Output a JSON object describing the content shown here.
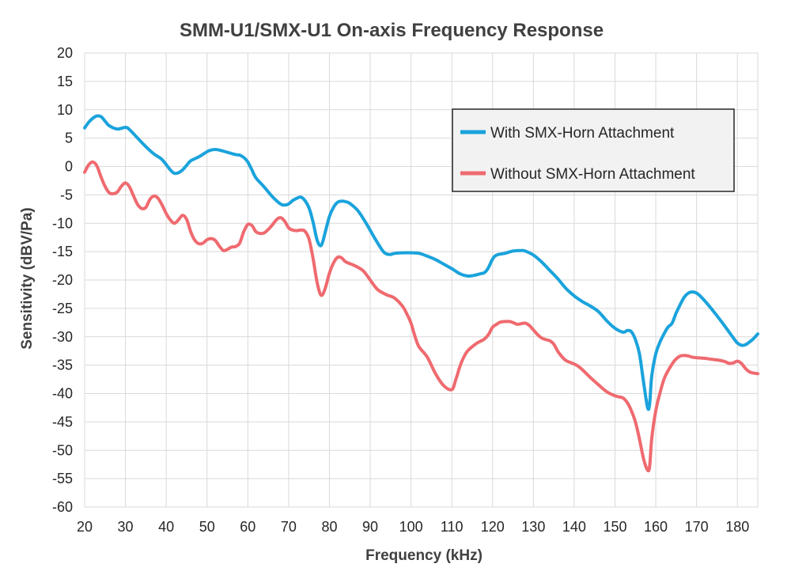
{
  "chart_data": {
    "type": "line",
    "title": "SMM-U1/SMX-U1  On-axis Frequency Response",
    "xlabel": "Frequency (kHz)",
    "ylabel": "Sensitivity (dBV/Pa)",
    "xlim": [
      20,
      185
    ],
    "ylim": [
      -60,
      20
    ],
    "xticks": [
      20,
      30,
      40,
      50,
      60,
      70,
      80,
      90,
      100,
      110,
      120,
      130,
      140,
      150,
      160,
      170,
      180
    ],
    "yticks": [
      20,
      15,
      10,
      5,
      0,
      -5,
      -10,
      -15,
      -20,
      -25,
      -30,
      -35,
      -40,
      -45,
      -50,
      -55,
      -60
    ],
    "grid": true,
    "legend_position": "top-right",
    "series": [
      {
        "name": "With SMX-Horn Attachment",
        "color": "#1aa3dc",
        "points": [
          [
            20,
            6.8
          ],
          [
            21,
            7.8
          ],
          [
            22,
            8.5
          ],
          [
            23,
            8.9
          ],
          [
            24,
            8.8
          ],
          [
            25,
            8
          ],
          [
            26,
            7.2
          ],
          [
            28,
            6.6
          ],
          [
            30,
            6.9
          ],
          [
            31,
            6.5
          ],
          [
            33,
            5
          ],
          [
            35,
            3.5
          ],
          [
            37,
            2.2
          ],
          [
            39,
            1.2
          ],
          [
            41,
            -0.6
          ],
          [
            42,
            -1.2
          ],
          [
            43,
            -1.1
          ],
          [
            44,
            -0.6
          ],
          [
            45,
            0.2
          ],
          [
            46,
            1
          ],
          [
            48,
            1.7
          ],
          [
            50,
            2.6
          ],
          [
            51,
            2.9
          ],
          [
            52,
            3
          ],
          [
            53,
            2.9
          ],
          [
            55,
            2.5
          ],
          [
            57,
            2.1
          ],
          [
            58,
            2
          ],
          [
            59,
            1.6
          ],
          [
            60,
            0.8
          ],
          [
            61,
            -0.6
          ],
          [
            62,
            -2
          ],
          [
            64,
            -3.6
          ],
          [
            66,
            -5.3
          ],
          [
            68,
            -6.6
          ],
          [
            69,
            -6.8
          ],
          [
            70,
            -6.6
          ],
          [
            71,
            -6
          ],
          [
            72,
            -5.6
          ],
          [
            73,
            -5.4
          ],
          [
            74,
            -6
          ],
          [
            75,
            -7.3
          ],
          [
            76,
            -9.8
          ],
          [
            77,
            -13
          ],
          [
            78,
            -13.9
          ],
          [
            79,
            -11.5
          ],
          [
            80,
            -8.8
          ],
          [
            81,
            -7.2
          ],
          [
            82,
            -6.3
          ],
          [
            83,
            -6.1
          ],
          [
            84,
            -6.2
          ],
          [
            85,
            -6.5
          ],
          [
            87,
            -7.8
          ],
          [
            89,
            -10
          ],
          [
            91,
            -12.5
          ],
          [
            93,
            -14.8
          ],
          [
            94,
            -15.4
          ],
          [
            95,
            -15.5
          ],
          [
            96,
            -15.3
          ],
          [
            98,
            -15.2
          ],
          [
            100,
            -15.2
          ],
          [
            102,
            -15.3
          ],
          [
            104,
            -15.8
          ],
          [
            106,
            -16.4
          ],
          [
            108,
            -17.2
          ],
          [
            110,
            -18
          ],
          [
            112,
            -18.9
          ],
          [
            114,
            -19.3
          ],
          [
            116,
            -19.1
          ],
          [
            117,
            -18.9
          ],
          [
            118,
            -18.7
          ],
          [
            119,
            -17.8
          ],
          [
            120,
            -16.3
          ],
          [
            121,
            -15.6
          ],
          [
            123,
            -15.3
          ],
          [
            125,
            -14.9
          ],
          [
            127,
            -14.8
          ],
          [
            128,
            -14.9
          ],
          [
            130,
            -15.6
          ],
          [
            132,
            -16.8
          ],
          [
            134,
            -18.3
          ],
          [
            136,
            -19.8
          ],
          [
            138,
            -21.5
          ],
          [
            140,
            -22.8
          ],
          [
            142,
            -23.8
          ],
          [
            144,
            -24.6
          ],
          [
            146,
            -25.6
          ],
          [
            148,
            -27.2
          ],
          [
            150,
            -28.5
          ],
          [
            152,
            -29.2
          ],
          [
            153,
            -28.9
          ],
          [
            154,
            -29.1
          ],
          [
            155,
            -30.5
          ],
          [
            156,
            -33
          ],
          [
            157,
            -38
          ],
          [
            158,
            -42.5
          ],
          [
            158.5,
            -41.8
          ],
          [
            159,
            -37
          ],
          [
            160,
            -33
          ],
          [
            161,
            -31
          ],
          [
            162,
            -29.5
          ],
          [
            163,
            -28.3
          ],
          [
            164,
            -27.6
          ],
          [
            165,
            -25.8
          ],
          [
            166,
            -24.3
          ],
          [
            167,
            -23
          ],
          [
            168,
            -22.3
          ],
          [
            169,
            -22.1
          ],
          [
            170,
            -22.3
          ],
          [
            171,
            -22.9
          ],
          [
            173,
            -24.5
          ],
          [
            175,
            -26.3
          ],
          [
            177,
            -28.2
          ],
          [
            179,
            -30.2
          ],
          [
            180,
            -31.1
          ],
          [
            181,
            -31.5
          ],
          [
            182,
            -31.4
          ],
          [
            183,
            -30.9
          ],
          [
            184,
            -30.3
          ],
          [
            185,
            -29.5
          ]
        ]
      },
      {
        "name": "Without SMX-Horn Attachment",
        "color": "#ef6a6f",
        "points": [
          [
            20,
            -1
          ],
          [
            21,
            0.3
          ],
          [
            22,
            0.8
          ],
          [
            23,
            0.1
          ],
          [
            24,
            -1.8
          ],
          [
            25,
            -3.5
          ],
          [
            26,
            -4.6
          ],
          [
            27,
            -4.8
          ],
          [
            28,
            -4.5
          ],
          [
            29,
            -3.5
          ],
          [
            30,
            -2.9
          ],
          [
            31,
            -3.6
          ],
          [
            32,
            -5.2
          ],
          [
            33,
            -6.7
          ],
          [
            34,
            -7.4
          ],
          [
            35,
            -7.2
          ],
          [
            36,
            -5.8
          ],
          [
            37,
            -5.2
          ],
          [
            38,
            -5.6
          ],
          [
            39,
            -6.8
          ],
          [
            40,
            -8.3
          ],
          [
            41,
            -9.4
          ],
          [
            42,
            -10
          ],
          [
            43,
            -9.4
          ],
          [
            44,
            -8.6
          ],
          [
            45,
            -9.3
          ],
          [
            46,
            -11.5
          ],
          [
            47,
            -13
          ],
          [
            48,
            -13.6
          ],
          [
            49,
            -13.5
          ],
          [
            50,
            -12.9
          ],
          [
            51,
            -12.7
          ],
          [
            52,
            -13
          ],
          [
            53,
            -14
          ],
          [
            54,
            -14.8
          ],
          [
            55,
            -14.6
          ],
          [
            56,
            -14.2
          ],
          [
            57,
            -14.1
          ],
          [
            58,
            -13.5
          ],
          [
            59,
            -11.5
          ],
          [
            60,
            -10.2
          ],
          [
            61,
            -10.4
          ],
          [
            62,
            -11.5
          ],
          [
            63,
            -11.8
          ],
          [
            64,
            -11.7
          ],
          [
            65,
            -11.1
          ],
          [
            66,
            -10.3
          ],
          [
            67,
            -9.4
          ],
          [
            68,
            -9
          ],
          [
            69,
            -9.6
          ],
          [
            70,
            -10.8
          ],
          [
            71,
            -11.2
          ],
          [
            72,
            -11.3
          ],
          [
            73,
            -11.2
          ],
          [
            74,
            -11.4
          ],
          [
            75,
            -12.8
          ],
          [
            76,
            -16.2
          ],
          [
            77,
            -20.5
          ],
          [
            78,
            -22.7
          ],
          [
            79,
            -21.4
          ],
          [
            80,
            -18.8
          ],
          [
            81,
            -17
          ],
          [
            82,
            -16
          ],
          [
            83,
            -16.1
          ],
          [
            84,
            -16.8
          ],
          [
            86,
            -17.4
          ],
          [
            88,
            -18.2
          ],
          [
            89,
            -19
          ],
          [
            90,
            -20
          ],
          [
            91,
            -21
          ],
          [
            92,
            -21.8
          ],
          [
            94,
            -22.6
          ],
          [
            96,
            -23.2
          ],
          [
            98,
            -24.7
          ],
          [
            99,
            -26
          ],
          [
            100,
            -27.6
          ],
          [
            101,
            -30
          ],
          [
            102,
            -31.8
          ],
          [
            104,
            -33.6
          ],
          [
            106,
            -36.5
          ],
          [
            108,
            -38.6
          ],
          [
            110,
            -39.3
          ],
          [
            111,
            -37.5
          ],
          [
            112,
            -35.2
          ],
          [
            113,
            -33.5
          ],
          [
            114,
            -32.4
          ],
          [
            116,
            -31.2
          ],
          [
            117,
            -30.8
          ],
          [
            118,
            -30.4
          ],
          [
            119,
            -29.6
          ],
          [
            120,
            -28.3
          ],
          [
            121,
            -27.8
          ],
          [
            122,
            -27.4
          ],
          [
            124,
            -27.3
          ],
          [
            125,
            -27.5
          ],
          [
            126,
            -27.8
          ],
          [
            127,
            -27.7
          ],
          [
            128,
            -27.6
          ],
          [
            129,
            -28
          ],
          [
            130,
            -28.8
          ],
          [
            131,
            -29.6
          ],
          [
            132,
            -30.2
          ],
          [
            133,
            -30.5
          ],
          [
            134,
            -30.7
          ],
          [
            135,
            -31.3
          ],
          [
            136,
            -32.6
          ],
          [
            137,
            -33.5
          ],
          [
            138,
            -34.2
          ],
          [
            140,
            -34.8
          ],
          [
            141,
            -35.2
          ],
          [
            142,
            -35.8
          ],
          [
            144,
            -37.2
          ],
          [
            146,
            -38.5
          ],
          [
            148,
            -39.7
          ],
          [
            150,
            -40.4
          ],
          [
            151,
            -40.6
          ],
          [
            152,
            -40.8
          ],
          [
            153,
            -41.6
          ],
          [
            154,
            -43
          ],
          [
            155,
            -45
          ],
          [
            156,
            -48
          ],
          [
            157,
            -51.5
          ],
          [
            158,
            -53.5
          ],
          [
            158.5,
            -52.8
          ],
          [
            159,
            -48
          ],
          [
            160,
            -43
          ],
          [
            161,
            -40
          ],
          [
            162,
            -37.5
          ],
          [
            163,
            -36
          ],
          [
            164,
            -34.8
          ],
          [
            165,
            -33.9
          ],
          [
            166,
            -33.4
          ],
          [
            167,
            -33.3
          ],
          [
            168,
            -33.4
          ],
          [
            169,
            -33.6
          ],
          [
            170,
            -33.7
          ],
          [
            172,
            -33.8
          ],
          [
            174,
            -34
          ],
          [
            176,
            -34.2
          ],
          [
            177,
            -34.4
          ],
          [
            178,
            -34.7
          ],
          [
            179,
            -34.6
          ],
          [
            180,
            -34.3
          ],
          [
            181,
            -34.7
          ],
          [
            182,
            -35.6
          ],
          [
            183,
            -36.2
          ],
          [
            184,
            -36.4
          ],
          [
            185,
            -36.5
          ]
        ]
      }
    ]
  }
}
